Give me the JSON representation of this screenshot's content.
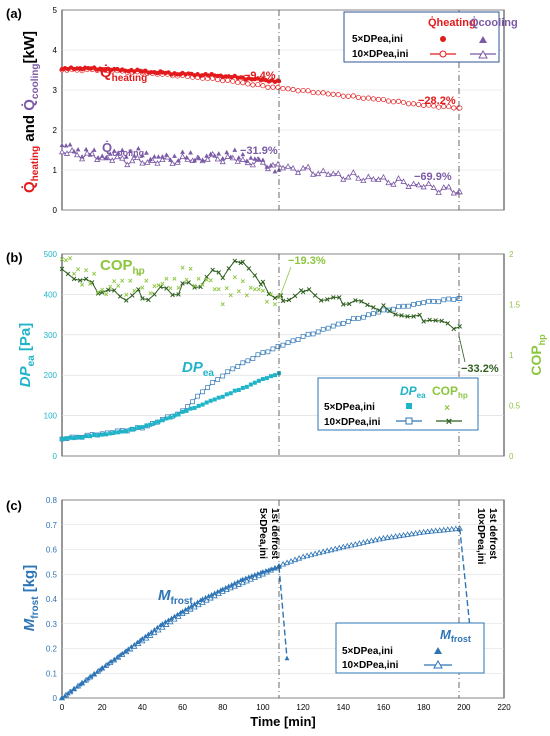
{
  "colors": {
    "heating": "#e31a1c",
    "cooling": "#7b5aa6",
    "dp": "#1fb4c8",
    "cop_5x": "#8cc63f",
    "cop_10x": "#2f5f1f",
    "frost": "#2e75b6",
    "axis": "#000000",
    "grid": "#d9d9d9"
  },
  "chart_data": [
    {
      "panel": "(a)",
      "type": "scatter",
      "ylabel": "Q̇heating and Q̇cooling [kW]",
      "ylabel_parts": {
        "q1": "Q̇",
        "sub1": "heating",
        "mid": " and ",
        "q2": "Q̇",
        "sub2": "cooling",
        "unit": "[kW]"
      },
      "xlim": [
        0,
        220
      ],
      "ylim": [
        0,
        5
      ],
      "yticks": [
        0,
        1,
        2,
        3,
        4,
        5
      ],
      "grid": true,
      "legend": {
        "placement": "top-right",
        "header_heating": "Q̇heating",
        "header_cooling": "Q̇cooling",
        "row1": "5×DPea,ini",
        "row2": "10×DPea,ini"
      },
      "series": [
        {
          "name": "Q̇heating 5×DPea,ini",
          "x": [
            0,
            10,
            20,
            30,
            40,
            50,
            60,
            70,
            80,
            90,
            100,
            108
          ],
          "y": [
            3.52,
            3.55,
            3.52,
            3.5,
            3.47,
            3.43,
            3.4,
            3.38,
            3.35,
            3.3,
            3.25,
            3.22
          ]
        },
        {
          "name": "Q̇heating 10×DPea,ini",
          "x": [
            0,
            20,
            40,
            60,
            80,
            100,
            120,
            140,
            160,
            180,
            198
          ],
          "y": [
            3.5,
            3.5,
            3.43,
            3.35,
            3.25,
            3.1,
            2.98,
            2.86,
            2.75,
            2.62,
            2.55
          ]
        },
        {
          "name": "Q̇cooling 5×DPea,ini",
          "x": [
            0,
            10,
            20,
            30,
            40,
            50,
            60,
            70,
            80,
            90,
            100,
            108
          ],
          "y": [
            1.62,
            1.45,
            1.35,
            1.45,
            1.4,
            1.3,
            1.35,
            1.3,
            1.4,
            1.35,
            1.2,
            1.0
          ]
        },
        {
          "name": "Q̇cooling 10×DPea,ini",
          "x": [
            0,
            20,
            40,
            60,
            80,
            100,
            120,
            140,
            160,
            180,
            198
          ],
          "y": [
            1.45,
            1.3,
            1.2,
            1.25,
            1.3,
            1.15,
            1.0,
            0.85,
            0.75,
            0.6,
            0.45
          ]
        }
      ],
      "annotations": [
        {
          "text": "Q̇heating",
          "q": "Q̇",
          "sub": "heating"
        },
        {
          "text": "Q̇cooling",
          "q": "Q̇",
          "sub": "cooling"
        },
        {
          "text": "−9.4%"
        },
        {
          "text": "−28.2%"
        },
        {
          "text": "−31.9%"
        },
        {
          "text": "−69.9%"
        }
      ]
    },
    {
      "panel": "(b)",
      "type": "scatter",
      "ylabel_left": "DPea [Pa]",
      "ylabel_right": "COPhp",
      "xlim": [
        0,
        220
      ],
      "ylim_left": [
        0,
        500
      ],
      "ylim_right": [
        0,
        2
      ],
      "yticks_left": [
        0,
        100,
        200,
        300,
        400,
        500
      ],
      "yticks_right": [
        "0",
        "0.5",
        "1",
        "1.5",
        "2"
      ],
      "grid": true,
      "legend": {
        "placement": "lower-right",
        "header_dp": "DPea",
        "header_cop": "COPhp",
        "row1": "5×DPea,ini",
        "row2": "10×DPea,ini"
      },
      "series": [
        {
          "name": "DPea 5×DPea,ini",
          "x": [
            0,
            10,
            20,
            30,
            40,
            50,
            60,
            70,
            80,
            90,
            100,
            108
          ],
          "y": [
            42,
            47,
            53,
            60,
            72,
            88,
            108,
            128,
            148,
            168,
            190,
            205
          ]
        },
        {
          "name": "DPea 10×DPea,ini",
          "x": [
            0,
            20,
            40,
            60,
            70,
            80,
            90,
            100,
            110,
            120,
            140,
            160,
            180,
            198
          ],
          "y": [
            42,
            55,
            70,
            110,
            160,
            200,
            230,
            255,
            275,
            295,
            330,
            360,
            380,
            390
          ]
        },
        {
          "name": "COPhp 5×DPea,ini",
          "x": [
            0,
            10,
            20,
            30,
            40,
            50,
            60,
            70,
            80,
            90,
            100,
            108
          ],
          "y": [
            1.95,
            1.8,
            1.65,
            1.7,
            1.7,
            1.68,
            1.78,
            1.75,
            1.6,
            1.7,
            1.6,
            1.58
          ]
        },
        {
          "name": "COPhp 10×DPea,ini",
          "x": [
            0,
            20,
            40,
            60,
            80,
            90,
            100,
            110,
            120,
            140,
            160,
            180,
            198
          ],
          "y": [
            1.85,
            1.62,
            1.58,
            1.66,
            1.82,
            1.9,
            1.7,
            1.55,
            1.6,
            1.55,
            1.45,
            1.35,
            1.28
          ]
        }
      ],
      "annotations": [
        {
          "text": "COPhp",
          "main": "COP",
          "sub": "hp"
        },
        {
          "text": "DPea",
          "main": "DP",
          "sub": "ea"
        },
        {
          "text": "−19.3%"
        },
        {
          "text": "−33.2%"
        }
      ]
    },
    {
      "panel": "(c)",
      "type": "line",
      "xlabel": "Time [min]",
      "ylabel": "Mfrost [kg]",
      "xlim": [
        0,
        220
      ],
      "xticks": [
        0,
        20,
        40,
        60,
        80,
        100,
        120,
        140,
        160,
        180,
        200,
        220
      ],
      "ylim": [
        0,
        0.8
      ],
      "yticks": [
        "0",
        "0.1",
        "0.2",
        "0.3",
        "0.4",
        "0.5",
        "0.6",
        "0.7",
        "0.8"
      ],
      "grid": true,
      "legend": {
        "placement": "lower-right",
        "header": "Mfrost",
        "row1": "5×DPea,ini",
        "row2": "10×DPea,ini"
      },
      "series": [
        {
          "name": "Mfrost 5×DPea,ini",
          "x": [
            0,
            10,
            20,
            30,
            40,
            50,
            60,
            70,
            80,
            90,
            100,
            108
          ],
          "y": [
            0,
            0.06,
            0.12,
            0.18,
            0.24,
            0.3,
            0.35,
            0.4,
            0.44,
            0.48,
            0.51,
            0.53
          ]
        },
        {
          "name": "Mfrost 5×DPea,ini defrost",
          "x": [
            108,
            112
          ],
          "y": [
            0.53,
            0.16
          ]
        },
        {
          "name": "Mfrost 10×DPea,ini",
          "x": [
            0,
            20,
            40,
            60,
            80,
            100,
            110,
            120,
            140,
            160,
            180,
            198
          ],
          "y": [
            0,
            0.12,
            0.23,
            0.34,
            0.43,
            0.5,
            0.54,
            0.57,
            0.61,
            0.645,
            0.67,
            0.685
          ]
        },
        {
          "name": "Mfrost 10×DPea,ini defrost",
          "x": [
            198,
            204
          ],
          "y": [
            0.685,
            0.21
          ]
        }
      ],
      "annotations": [
        {
          "text": "Mfrost",
          "main": "M",
          "sub": "frost"
        },
        {
          "text": "5×DPea,ini 1st defrost",
          "line1": "5×DPea,ini",
          "line2": "1st defrost"
        },
        {
          "text": "10×DPea,ini 1st defrost",
          "line1": "10×DPea,ini",
          "line2": "1st defrost"
        }
      ]
    }
  ]
}
